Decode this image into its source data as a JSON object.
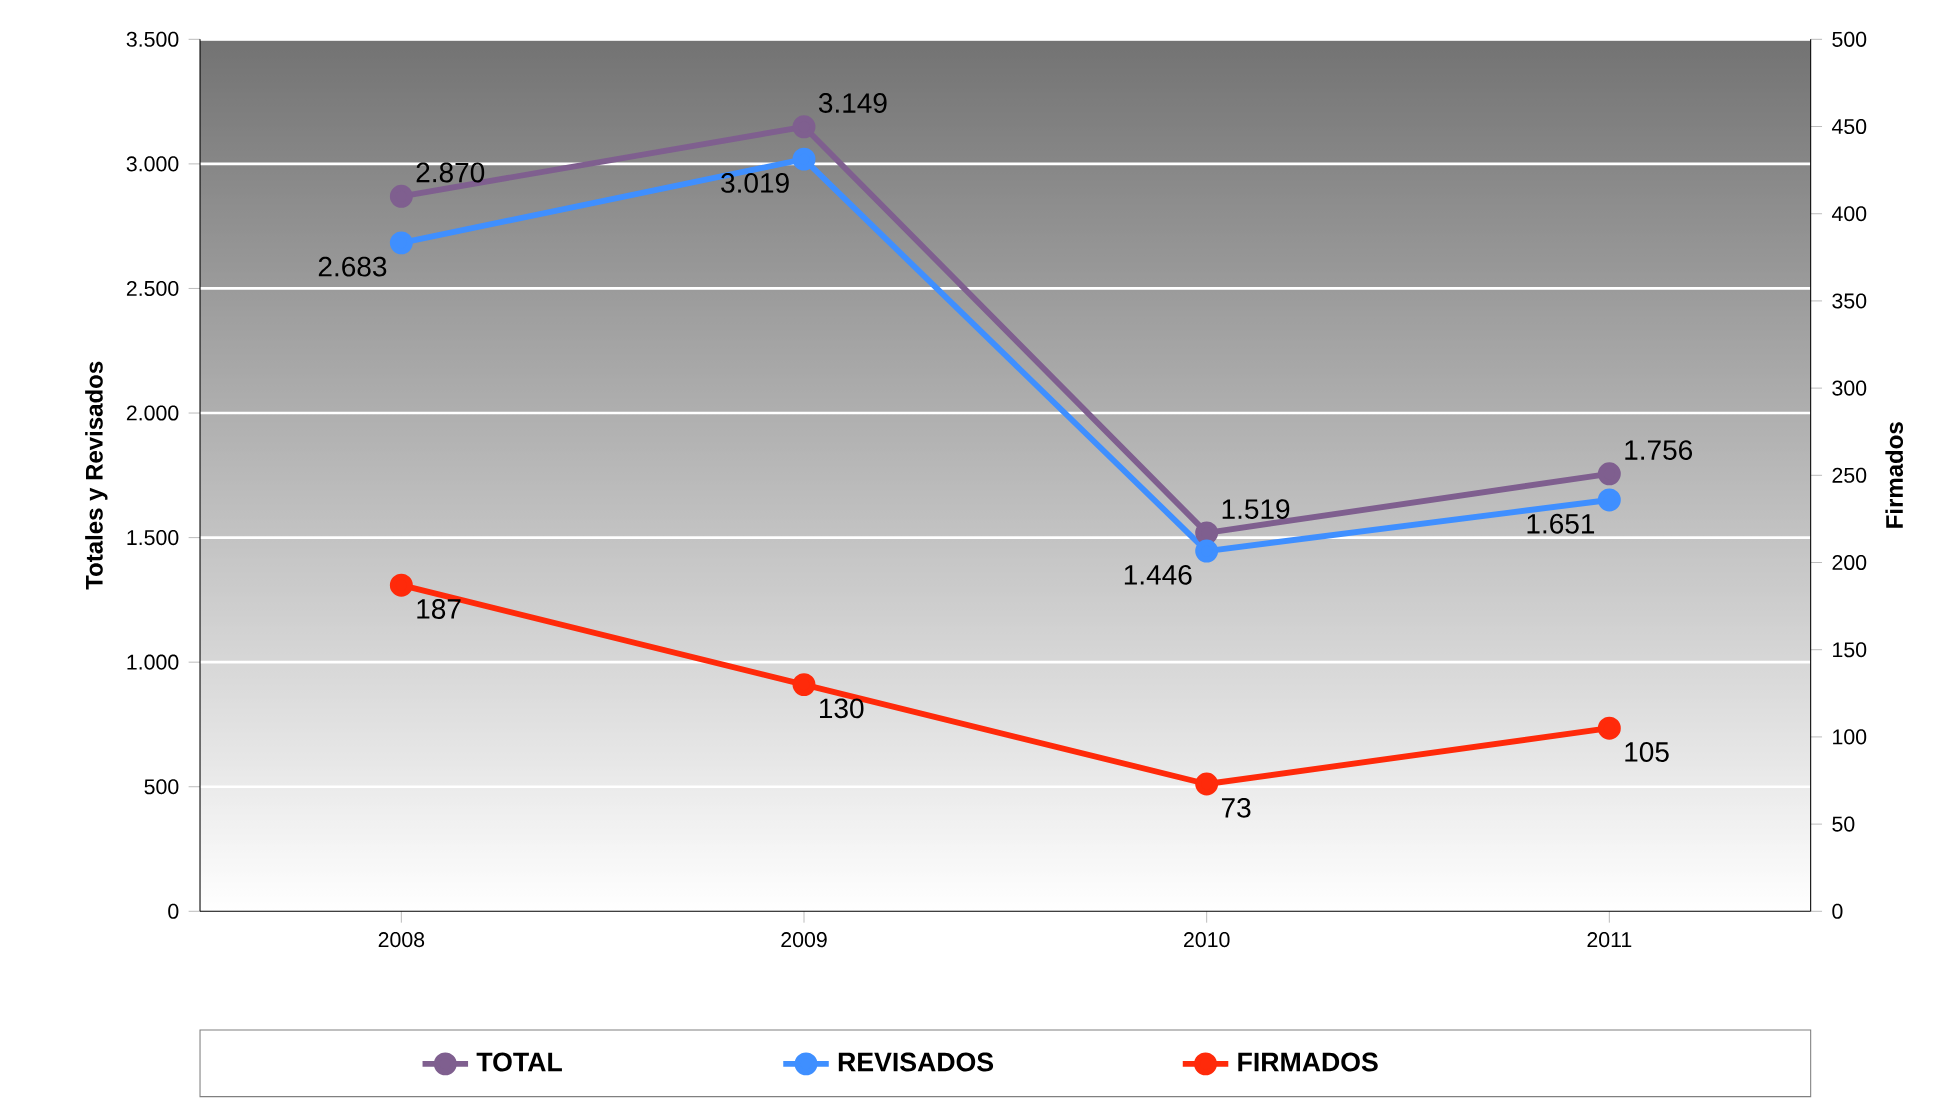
{
  "chart_data": {
    "type": "line",
    "categories": [
      "2008",
      "2009",
      "2010",
      "2011"
    ],
    "ylabel": "Totales y Revisados",
    "y2label": "Firmados",
    "ylim": [
      0,
      3500
    ],
    "yticks": [
      0,
      {
        "value": 500,
        "label": "500"
      },
      {
        "value": 1000,
        "label": "1.000"
      },
      {
        "value": 1500,
        "label": "1.500"
      },
      {
        "value": 2000,
        "label": "2.000"
      },
      {
        "value": 2500,
        "label": "2.500"
      },
      {
        "value": 3000,
        "label": "3.000"
      },
      {
        "value": 3500,
        "label": "3.500"
      }
    ],
    "y2lim": [
      0,
      500
    ],
    "y2ticks": [
      0,
      50,
      100,
      150,
      200,
      250,
      300,
      350,
      400,
      450,
      500
    ],
    "grid": "y",
    "legend": "bottom",
    "marker": "circle",
    "line_style": "solid",
    "series": [
      {
        "name": "TOTAL",
        "color": "#7f5f8f",
        "values": [
          2870,
          3149,
          1519,
          1756
        ],
        "value_labels": [
          "2.870",
          "3.149",
          "1.519",
          "1.756"
        ]
      },
      {
        "name": "REVISADOS",
        "color": "#3f8fff",
        "values": [
          2683,
          3019,
          1446,
          1651
        ],
        "value_labels": [
          "2.683",
          "3.019",
          "1.446",
          "1.651"
        ]
      },
      {
        "name": "FIRMADOS",
        "color": "#ff2a0a",
        "axis": "y2",
        "values": [
          187,
          130,
          73,
          105
        ],
        "value_labels": [
          "187",
          "130",
          "73",
          "105"
        ]
      }
    ]
  }
}
